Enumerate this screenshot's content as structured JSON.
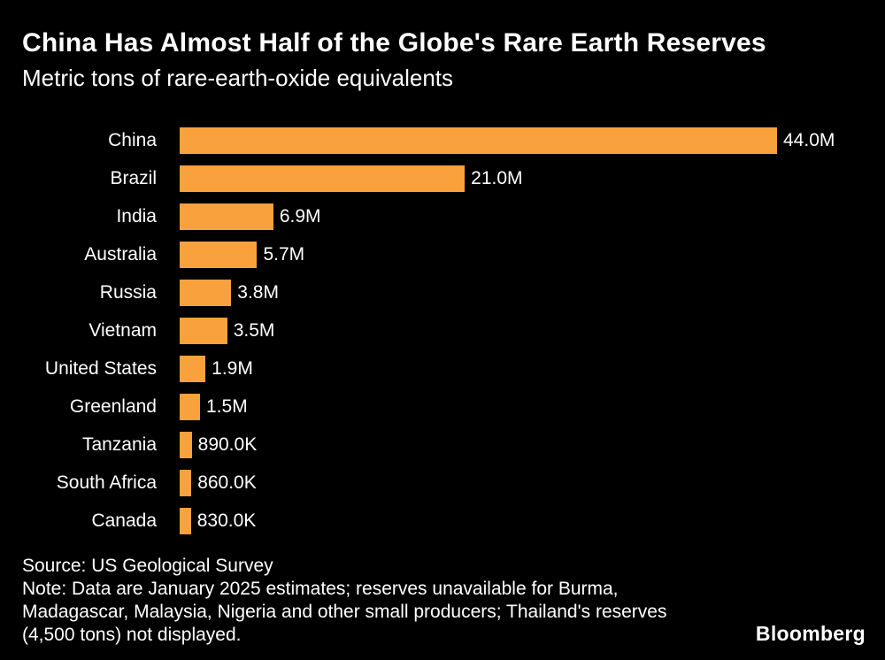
{
  "chart_data": {
    "type": "bar",
    "orientation": "horizontal",
    "title": "China Has Almost Half of the Globe's Rare Earth Reserves",
    "subtitle": "Metric tons of rare-earth-oxide equivalents",
    "categories": [
      "China",
      "Brazil",
      "India",
      "Australia",
      "Russia",
      "Vietnam",
      "United States",
      "Greenland",
      "Tanzania",
      "South Africa",
      "Canada"
    ],
    "values": [
      44000000,
      21000000,
      6900000,
      5700000,
      3800000,
      3500000,
      1900000,
      1500000,
      890000,
      860000,
      830000
    ],
    "value_labels": [
      "44.0M",
      "21.0M",
      "6.9M",
      "5.7M",
      "3.8M",
      "3.5M",
      "1.9M",
      "1.5M",
      "890.0K",
      "860.0K",
      "830.0K"
    ],
    "xlim": [
      0,
      44000000
    ],
    "bar_color": "#F9A13C",
    "grid": false,
    "legend": false
  },
  "footer": {
    "source": "Source: US Geological Survey",
    "note_lines": [
      "Note: Data are January 2025 estimates; reserves unavailable for Burma,",
      "Madagascar, Malaysia, Nigeria and other small producers; Thailand's reserves",
      "(4,500 tons) not displayed."
    ],
    "brand": "Bloomberg"
  },
  "colors": {
    "background": "#000000",
    "text": "#FFFFFF",
    "bar": "#F9A13C"
  }
}
